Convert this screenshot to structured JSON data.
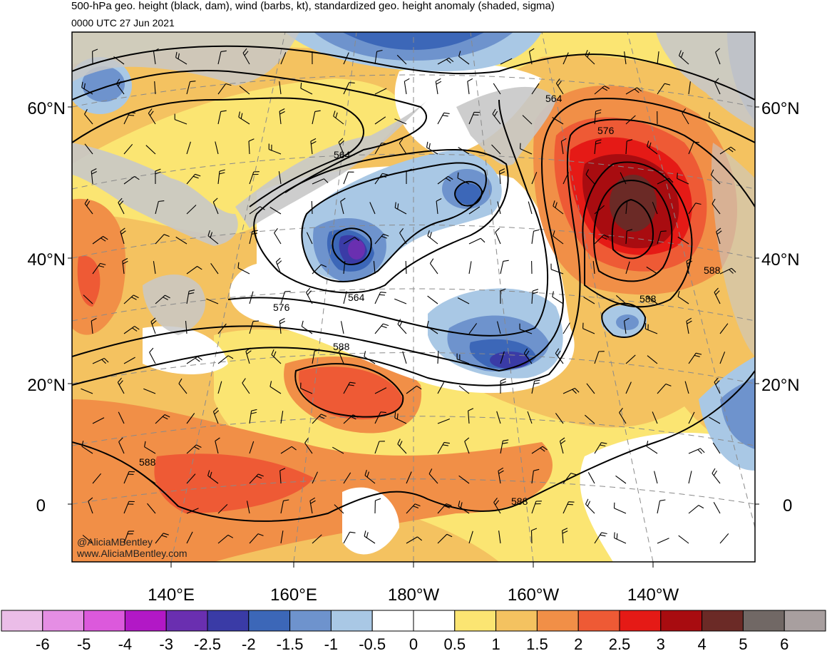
{
  "header": {
    "title": "500-hPa geo. height (black, dam), wind (barbs, kt), standardized geo. height anomaly (shaded, sigma)",
    "valid_time": "0000 UTC 27 Jun 2021"
  },
  "axes": {
    "lat_labels": [
      "60°N",
      "40°N",
      "20°N",
      "0"
    ],
    "lon_labels": [
      "140°E",
      "160°E",
      "180°W",
      "160°W",
      "140°W"
    ]
  },
  "contour_labels": [
    "564",
    "576",
    "564",
    "576",
    "564",
    "588",
    "588",
    "588",
    "588",
    "588"
  ],
  "credits": {
    "handle": "@AliciaMBentley",
    "website": "www.AliciaMBentley.com"
  },
  "colorbar": {
    "labels": [
      "-6",
      "-5",
      "-4",
      "-3",
      "-2.5",
      "-2",
      "-1.5",
      "-1",
      "-0.5",
      "0",
      "0.5",
      "1",
      "1.5",
      "2",
      "2.5",
      "3",
      "4",
      "5",
      "6"
    ],
    "colors": [
      "#ebbde8",
      "#e58ee4",
      "#dc59dc",
      "#b218c6",
      "#6a2fb0",
      "#3a3ba6",
      "#3c67b8",
      "#6e93cd",
      "#a9c8e5",
      "#ffffff",
      "#ffffff",
      "#fbe572",
      "#f4c260",
      "#f18f47",
      "#ee5a35",
      "#e51a16",
      "#a80c10",
      "#6b2a26",
      "#716865",
      "#a89f9f"
    ]
  },
  "colors": {
    "land": "#c8c8c8",
    "contour": "#000000"
  }
}
